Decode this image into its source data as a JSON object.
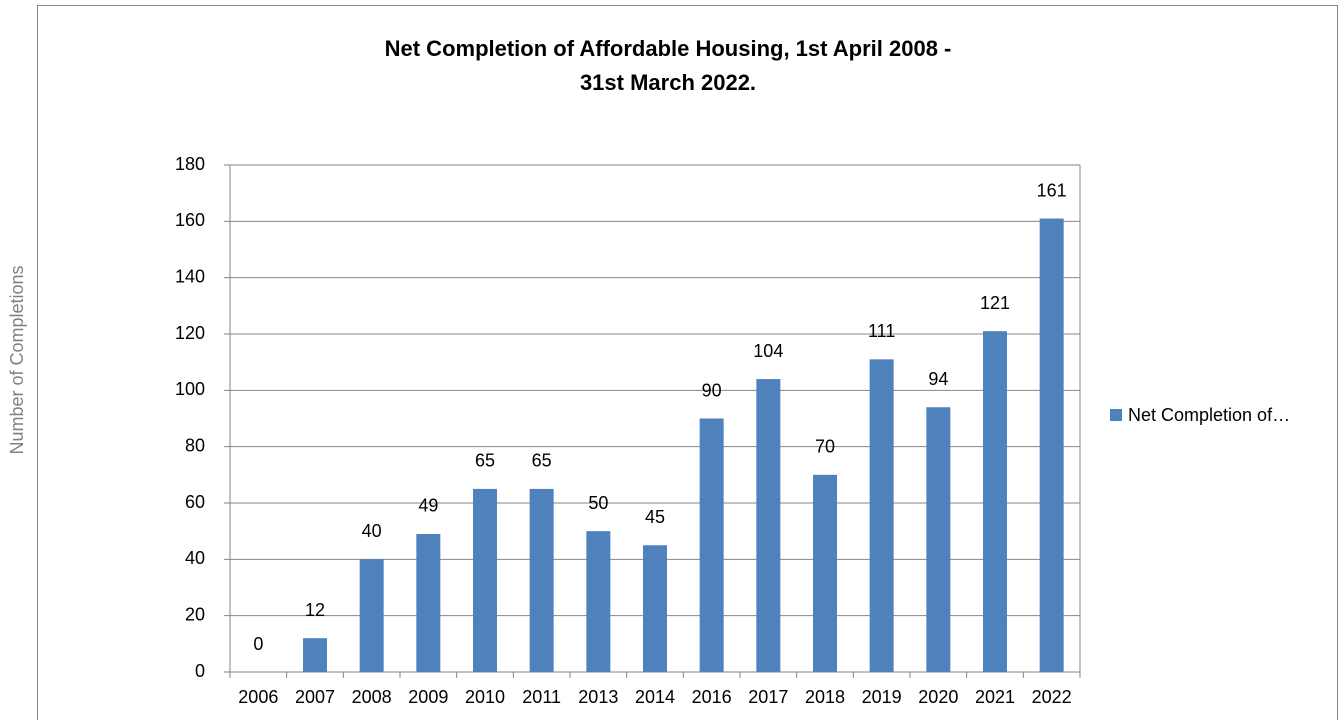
{
  "chart_data": {
    "type": "bar",
    "title": [
      "Net Completion of Affordable Housing, 1st April 2008 -",
      "31st March 2022."
    ],
    "y_label": "Number of Completions",
    "categories": [
      "2006",
      "2007",
      "2008",
      "2009",
      "2010",
      "2011",
      "2013",
      "2014",
      "2016",
      "2017",
      "2018",
      "2019",
      "2020",
      "2021",
      "2022"
    ],
    "series": [
      {
        "name": "Net Completion of…",
        "color": "#4f81bd",
        "values": [
          0,
          12,
          40,
          49,
          65,
          65,
          50,
          45,
          90,
          104,
          70,
          111,
          94,
          121,
          161
        ]
      }
    ],
    "ylim": [
      0,
      180
    ],
    "yticks": [
      0,
      20,
      40,
      60,
      80,
      100,
      120,
      140,
      160,
      180
    ],
    "grid": true,
    "legend": "right"
  }
}
